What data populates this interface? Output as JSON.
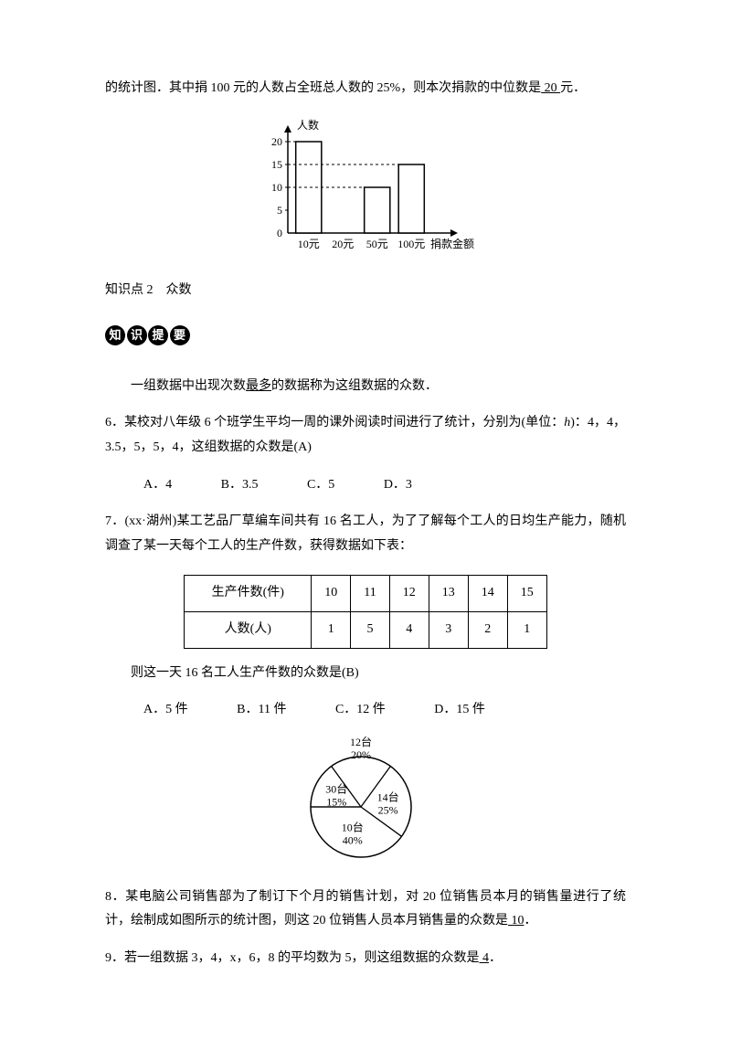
{
  "q5_intro": "的统计图．其中捐 100 元的人数占全班总人数的 25%，则本次捐款的中位数是",
  "q5_answer": " 20 ",
  "q5_suffix": "元．",
  "bar_chart": {
    "type": "bar",
    "y_label": "人数",
    "x_label": "捐款金额",
    "x_ticks": [
      "10元",
      "20元",
      "50元",
      "100元"
    ],
    "y_ticks": [
      0,
      5,
      10,
      15,
      20
    ],
    "values": [
      20,
      0,
      10,
      15
    ],
    "axis_color": "#000000",
    "bar_fill": "#ffffff",
    "bar_stroke": "#000000",
    "dash_color": "#000000",
    "background": "#ffffff",
    "fontsize": 12
  },
  "kp2_title": "知识点 2　众数",
  "pill_chars": [
    "知",
    "识",
    "提",
    "要"
  ],
  "kp2_desc_pre": "一组数据中出现次数",
  "kp2_desc_u": "最多",
  "kp2_desc_post": "的数据称为这组数据的众数．",
  "q6_text": "6．某校对八年级 6 个班学生平均一周的课外阅读时间进行了统计，分别为(单位：",
  "q6_unit": "h",
  "q6_text2": ")：4，4，3.5，5，5，4，这组数据的众数是(A)",
  "q6_opts": {
    "A": "A．4",
    "B": "B．3.5",
    "C": "C．5",
    "D": "D．3"
  },
  "q7_text1": "7．(xx·湖州)某工艺品厂草编车间共有 16 名工人，为了了解每个工人的日均生产能力，随机调查了某一天每个工人的生产件数，获得数据如下表：",
  "q7_table": {
    "header": [
      "生产件数(件)",
      "10",
      "11",
      "12",
      "13",
      "14",
      "15"
    ],
    "row": [
      "人数(人)",
      "1",
      "5",
      "4",
      "3",
      "2",
      "1"
    ]
  },
  "q7_conc": "则这一天 16 名工人生产件数的众数是(B)",
  "q7_opts": {
    "A": "A．5 件",
    "B": "B．11 件",
    "C": "C．12 件",
    "D": "D．15 件"
  },
  "pie_chart": {
    "type": "pie",
    "slices": [
      {
        "label1": "30台",
        "label2": "15%",
        "angle": 54
      },
      {
        "label1": "12台",
        "label2": "20%",
        "angle": 72
      },
      {
        "label1": "14台",
        "label2": "25%",
        "angle": 90
      },
      {
        "label1": "10台",
        "label2": "40%",
        "angle": 144
      }
    ],
    "stroke": "#000000",
    "fill": "#ffffff",
    "fontsize": 12
  },
  "q8_pre": "8．某电脑公司销售部为了制订下个月的销售计划，对 20 位销售员本月的销售量进行了统计，绘制成如图所示的统计图，则这 20 位销售人员本月销售量的众数是",
  "q8_answer": " 10",
  "q8_suffix": "．",
  "q9_pre": "9．若一组数据 3，4，x，6，8 的平均数为 5，则这组数据的众数是",
  "q9_answer": " 4",
  "q9_suffix": "．"
}
